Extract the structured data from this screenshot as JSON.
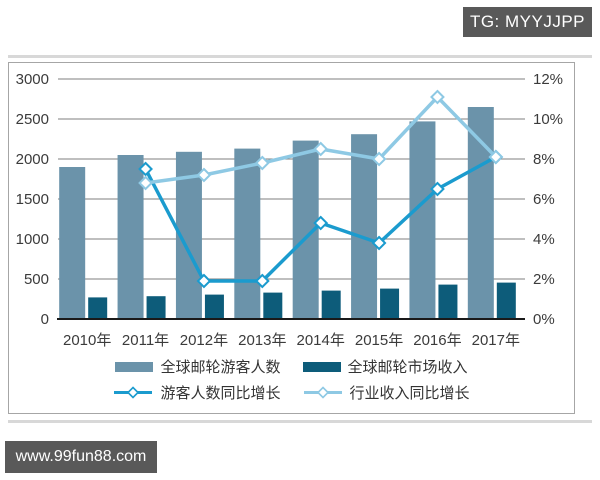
{
  "header": {
    "tag_label": "TG: MYYJJPP"
  },
  "footer": {
    "site_label": "www.99fun88.com"
  },
  "colors": {
    "banner_bg": "#595959",
    "banner_text": "#ffffff",
    "panel_border": "#a6a6a6",
    "grid": "#7f7f7f",
    "axis": "#1a1a1a",
    "tick_text": "#3b3b3b",
    "strip": "#d8d8d8"
  },
  "chart_data": {
    "type": "bar",
    "subtype": "combo-bar-line",
    "title": "",
    "xlabel": "",
    "ylabel": "",
    "categories": [
      "2010年",
      "2011年",
      "2012年",
      "2013年",
      "2014年",
      "2015年",
      "2016年",
      "2017年"
    ],
    "bar_series": [
      {
        "name": "全球邮轮游客人数",
        "color": "#6b93aa",
        "axis": "left",
        "values": [
          1900,
          2050,
          2090,
          2130,
          2230,
          2310,
          2470,
          2650
        ]
      },
      {
        "name": "全球邮轮市场收入",
        "color": "#0d5c7a",
        "axis": "left",
        "values": [
          270,
          285,
          305,
          330,
          355,
          380,
          430,
          455
        ]
      }
    ],
    "line_series": [
      {
        "name": "游客人数同比增长",
        "color": "#1b9bce",
        "marker": "diamond",
        "axis": "right",
        "values": [
          null,
          7.5,
          1.9,
          1.9,
          4.8,
          3.8,
          6.5,
          8.1
        ]
      },
      {
        "name": "行业收入同比增长",
        "color": "#8ec9e4",
        "marker": "diamond",
        "axis": "right",
        "values": [
          null,
          6.8,
          7.2,
          7.8,
          8.5,
          8.0,
          11.1,
          8.1
        ]
      }
    ],
    "left_axis": {
      "min": 0,
      "max": 3000,
      "step": 500,
      "ticks": [
        "0",
        "500",
        "1000",
        "1500",
        "2000",
        "2500",
        "3000"
      ]
    },
    "right_axis": {
      "min": 0,
      "max": 12,
      "step": 2,
      "ticks": [
        "0%",
        "2%",
        "4%",
        "6%",
        "8%",
        "10%",
        "12%"
      ]
    },
    "grid": true,
    "legend_position": "bottom"
  }
}
